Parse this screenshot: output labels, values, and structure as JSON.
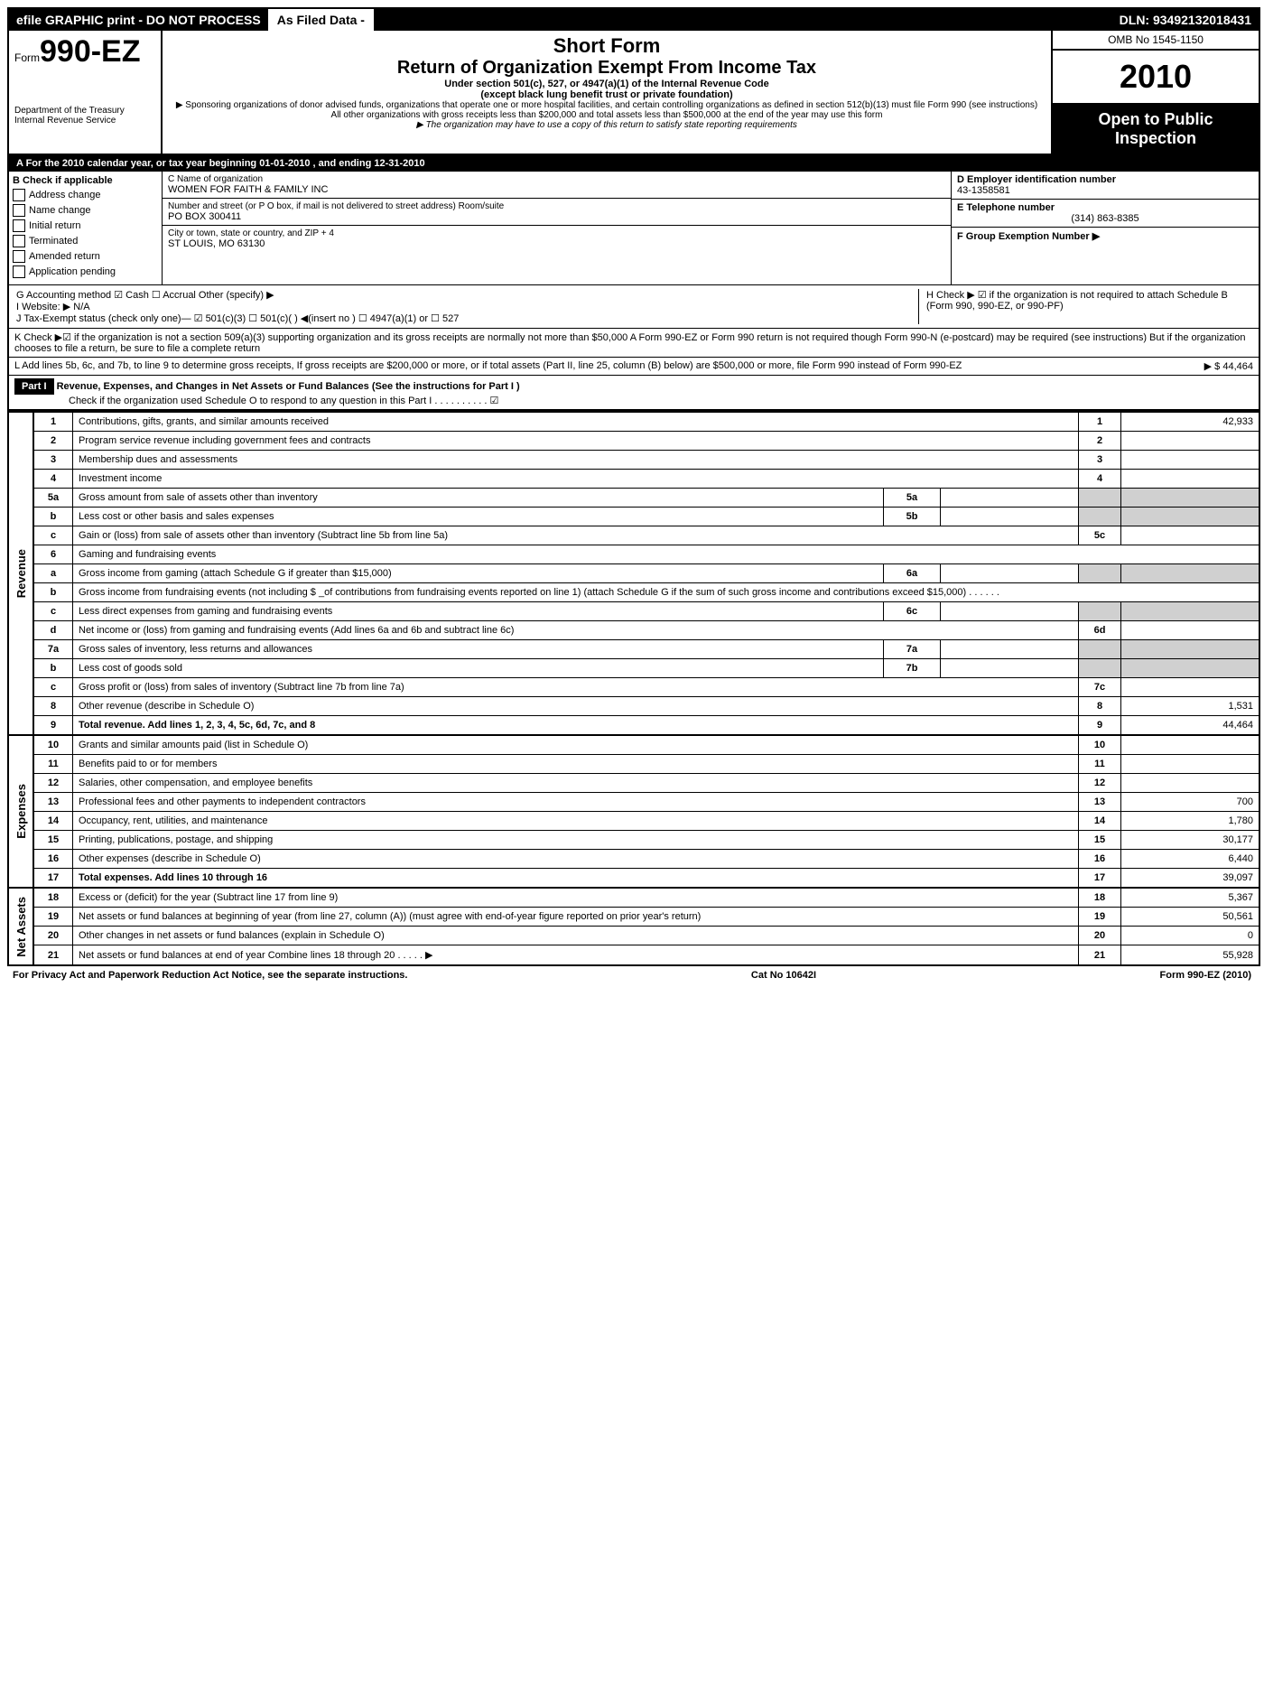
{
  "topbar": {
    "efile": "efile GRAPHIC print - DO NOT PROCESS",
    "asfiled": "As Filed Data -",
    "dln": "DLN: 93492132018431"
  },
  "header": {
    "form_prefix": "Form",
    "form_num": "990-EZ",
    "dept": "Department of the Treasury",
    "irs": "Internal Revenue Service",
    "short_form": "Short Form",
    "title": "Return of Organization Exempt From Income Tax",
    "subtitle1": "Under section 501(c), 527, or 4947(a)(1) of the Internal Revenue Code",
    "subtitle2": "(except black lung benefit trust or private foundation)",
    "note1": "▶ Sponsoring organizations of donor advised funds, organizations that operate one or more hospital facilities, and certain controlling organizations as defined in section 512(b)(13) must file Form 990 (see instructions)",
    "note2": "All other organizations with gross receipts less than $200,000 and total assets less than $500,000 at the end of the year may use this form",
    "note3": "▶ The organization may have to use a copy of this return to satisfy state reporting requirements",
    "omb": "OMB No 1545-1150",
    "year": "2010",
    "open": "Open to Public Inspection"
  },
  "line_a": "A  For the 2010 calendar year, or tax year beginning 01-01-2010              , and ending 12-31-2010",
  "section_b": {
    "label": "B  Check if applicable",
    "items": [
      "Address change",
      "Name change",
      "Initial return",
      "Terminated",
      "Amended return",
      "Application pending"
    ]
  },
  "section_c": {
    "c_label": "C Name of organization",
    "c_value": "WOMEN FOR FAITH & FAMILY INC",
    "street_label": "Number and street (or P  O  box, if mail is not delivered to street address) Room/suite",
    "street_value": "PO BOX 300411",
    "city_label": "City or town, state or country, and ZIP + 4",
    "city_value": "ST LOUIS, MO  63130"
  },
  "right": {
    "d_label": "D Employer identification number",
    "d_value": "43-1358581",
    "e_label": "E Telephone number",
    "e_value": "(314) 863-8385",
    "f_label": "F Group Exemption Number ▶"
  },
  "g_line": "G Accounting method   ☑ Cash  ☐ Accrual  Other (specify) ▶",
  "i_line": "I Website: ▶  N/A",
  "h_line": "H  Check ▶ ☑ if the organization is not required to attach Schedule B (Form 990, 990-EZ, or 990-PF)",
  "j_line": "J Tax-Exempt status (check only one)— ☑ 501(c)(3)   ☐ 501(c)( ) ◀(insert no ) ☐ 4947(a)(1) or ☐ 527",
  "k_line": "K Check ▶☑ if the organization is not a section 509(a)(3) supporting organization and its gross receipts are normally not more than $50,000  A Form 990-EZ or Form 990 return is not required though Form 990-N (e-postcard) may be required (see instructions)  But if the organization chooses to file a return, be sure to file a complete return",
  "l_line": "L Add lines 5b, 6c, and 7b, to line 9 to determine gross receipts, If gross receipts are $200,000 or more, or if total assets (Part II, line 25, column (B) below) are $500,000 or more, file Form 990 instead of Form 990-EZ",
  "l_amount": "▶ $                    44,464",
  "part1": {
    "label": "Part I",
    "title": "Revenue, Expenses, and Changes in Net Assets or Fund Balances (See the instructions for Part I )",
    "check": "Check if the organization used Schedule O to respond to any question in this Part I   .   .   .   .   .   .   .   .   .   . ☑"
  },
  "revenue_lines": [
    {
      "n": "1",
      "desc": "Contributions, gifts, grants, and similar amounts received",
      "box": "1",
      "amt": "42,933"
    },
    {
      "n": "2",
      "desc": "Program service revenue including government fees and contracts",
      "box": "2",
      "amt": ""
    },
    {
      "n": "3",
      "desc": "Membership dues and assessments",
      "box": "3",
      "amt": ""
    },
    {
      "n": "4",
      "desc": "Investment income",
      "box": "4",
      "amt": ""
    },
    {
      "n": "5a",
      "desc": "Gross amount from sale of assets other than inventory",
      "ibox": "5a"
    },
    {
      "n": "b",
      "desc": "Less  cost or other basis and sales expenses",
      "ibox": "5b"
    },
    {
      "n": "c",
      "desc": "Gain or (loss) from sale of assets other than inventory (Subtract line 5b from line 5a)",
      "box": "5c",
      "amt": ""
    },
    {
      "n": "6",
      "desc": "Gaming and fundraising events"
    },
    {
      "n": "a",
      "desc": "Gross income from gaming (attach Schedule G if greater than $15,000)",
      "ibox": "6a"
    },
    {
      "n": "b",
      "desc": "Gross income from fundraising events (not including $ _of contributions from fundraising events reported on line 1) (attach Schedule G if the sum of such gross income and contributions exceed $15,000)   .   .   .   .   .   ."
    },
    {
      "n": "c",
      "desc": "Less  direct expenses from gaming and fundraising events",
      "ibox": "6c"
    },
    {
      "n": "d",
      "desc": "Net income or (loss) from gaming and fundraising events (Add lines 6a and 6b and subtract line 6c)",
      "box": "6d",
      "amt": ""
    },
    {
      "n": "7a",
      "desc": "Gross sales of inventory, less returns and allowances",
      "ibox": "7a"
    },
    {
      "n": "b",
      "desc": "Less  cost of goods sold",
      "ibox": "7b"
    },
    {
      "n": "c",
      "desc": "Gross profit or (loss) from sales of inventory (Subtract line 7b from line 7a)",
      "box": "7c",
      "amt": ""
    },
    {
      "n": "8",
      "desc": "Other revenue (describe in Schedule O)",
      "box": "8",
      "amt": "1,531"
    },
    {
      "n": "9",
      "desc": "Total revenue. Add lines 1, 2, 3, 4, 5c, 6d, 7c, and 8",
      "box": "9",
      "amt": "44,464",
      "bold": true
    }
  ],
  "expense_lines": [
    {
      "n": "10",
      "desc": "Grants and similar amounts paid (list in Schedule O)",
      "box": "10",
      "amt": ""
    },
    {
      "n": "11",
      "desc": "Benefits paid to or for members",
      "box": "11",
      "amt": ""
    },
    {
      "n": "12",
      "desc": "Salaries, other compensation, and employee benefits",
      "box": "12",
      "amt": ""
    },
    {
      "n": "13",
      "desc": "Professional fees and other payments to independent contractors",
      "box": "13",
      "amt": "700"
    },
    {
      "n": "14",
      "desc": "Occupancy, rent, utilities, and maintenance",
      "box": "14",
      "amt": "1,780"
    },
    {
      "n": "15",
      "desc": "Printing, publications, postage, and shipping",
      "box": "15",
      "amt": "30,177"
    },
    {
      "n": "16",
      "desc": "Other expenses (describe in Schedule O)",
      "box": "16",
      "amt": "6,440"
    },
    {
      "n": "17",
      "desc": "Total expenses. Add lines 10 through 16",
      "box": "17",
      "amt": "39,097",
      "bold": true
    }
  ],
  "netasset_lines": [
    {
      "n": "18",
      "desc": "Excess or (deficit) for the year (Subtract line 17 from line 9)",
      "box": "18",
      "amt": "5,367"
    },
    {
      "n": "19",
      "desc": "Net assets or fund balances at beginning of year (from line 27, column (A)) (must agree with end-of-year figure reported on prior year's return)",
      "box": "19",
      "amt": "50,561"
    },
    {
      "n": "20",
      "desc": "Other changes in net assets or fund balances (explain in Schedule O)",
      "box": "20",
      "amt": "0"
    },
    {
      "n": "21",
      "desc": "Net assets or fund balances at end of year  Combine lines 18 through 20   .   .   .   .   . ▶",
      "box": "21",
      "amt": "55,928"
    }
  ],
  "footer": {
    "left": "For Privacy Act and Paperwork Reduction Act Notice, see the separate instructions.",
    "center": "Cat  No  10642I",
    "right": "Form 990-EZ (2010)"
  },
  "side_labels": {
    "rev": "Revenue",
    "exp": "Expenses",
    "net": "Net Assets"
  }
}
